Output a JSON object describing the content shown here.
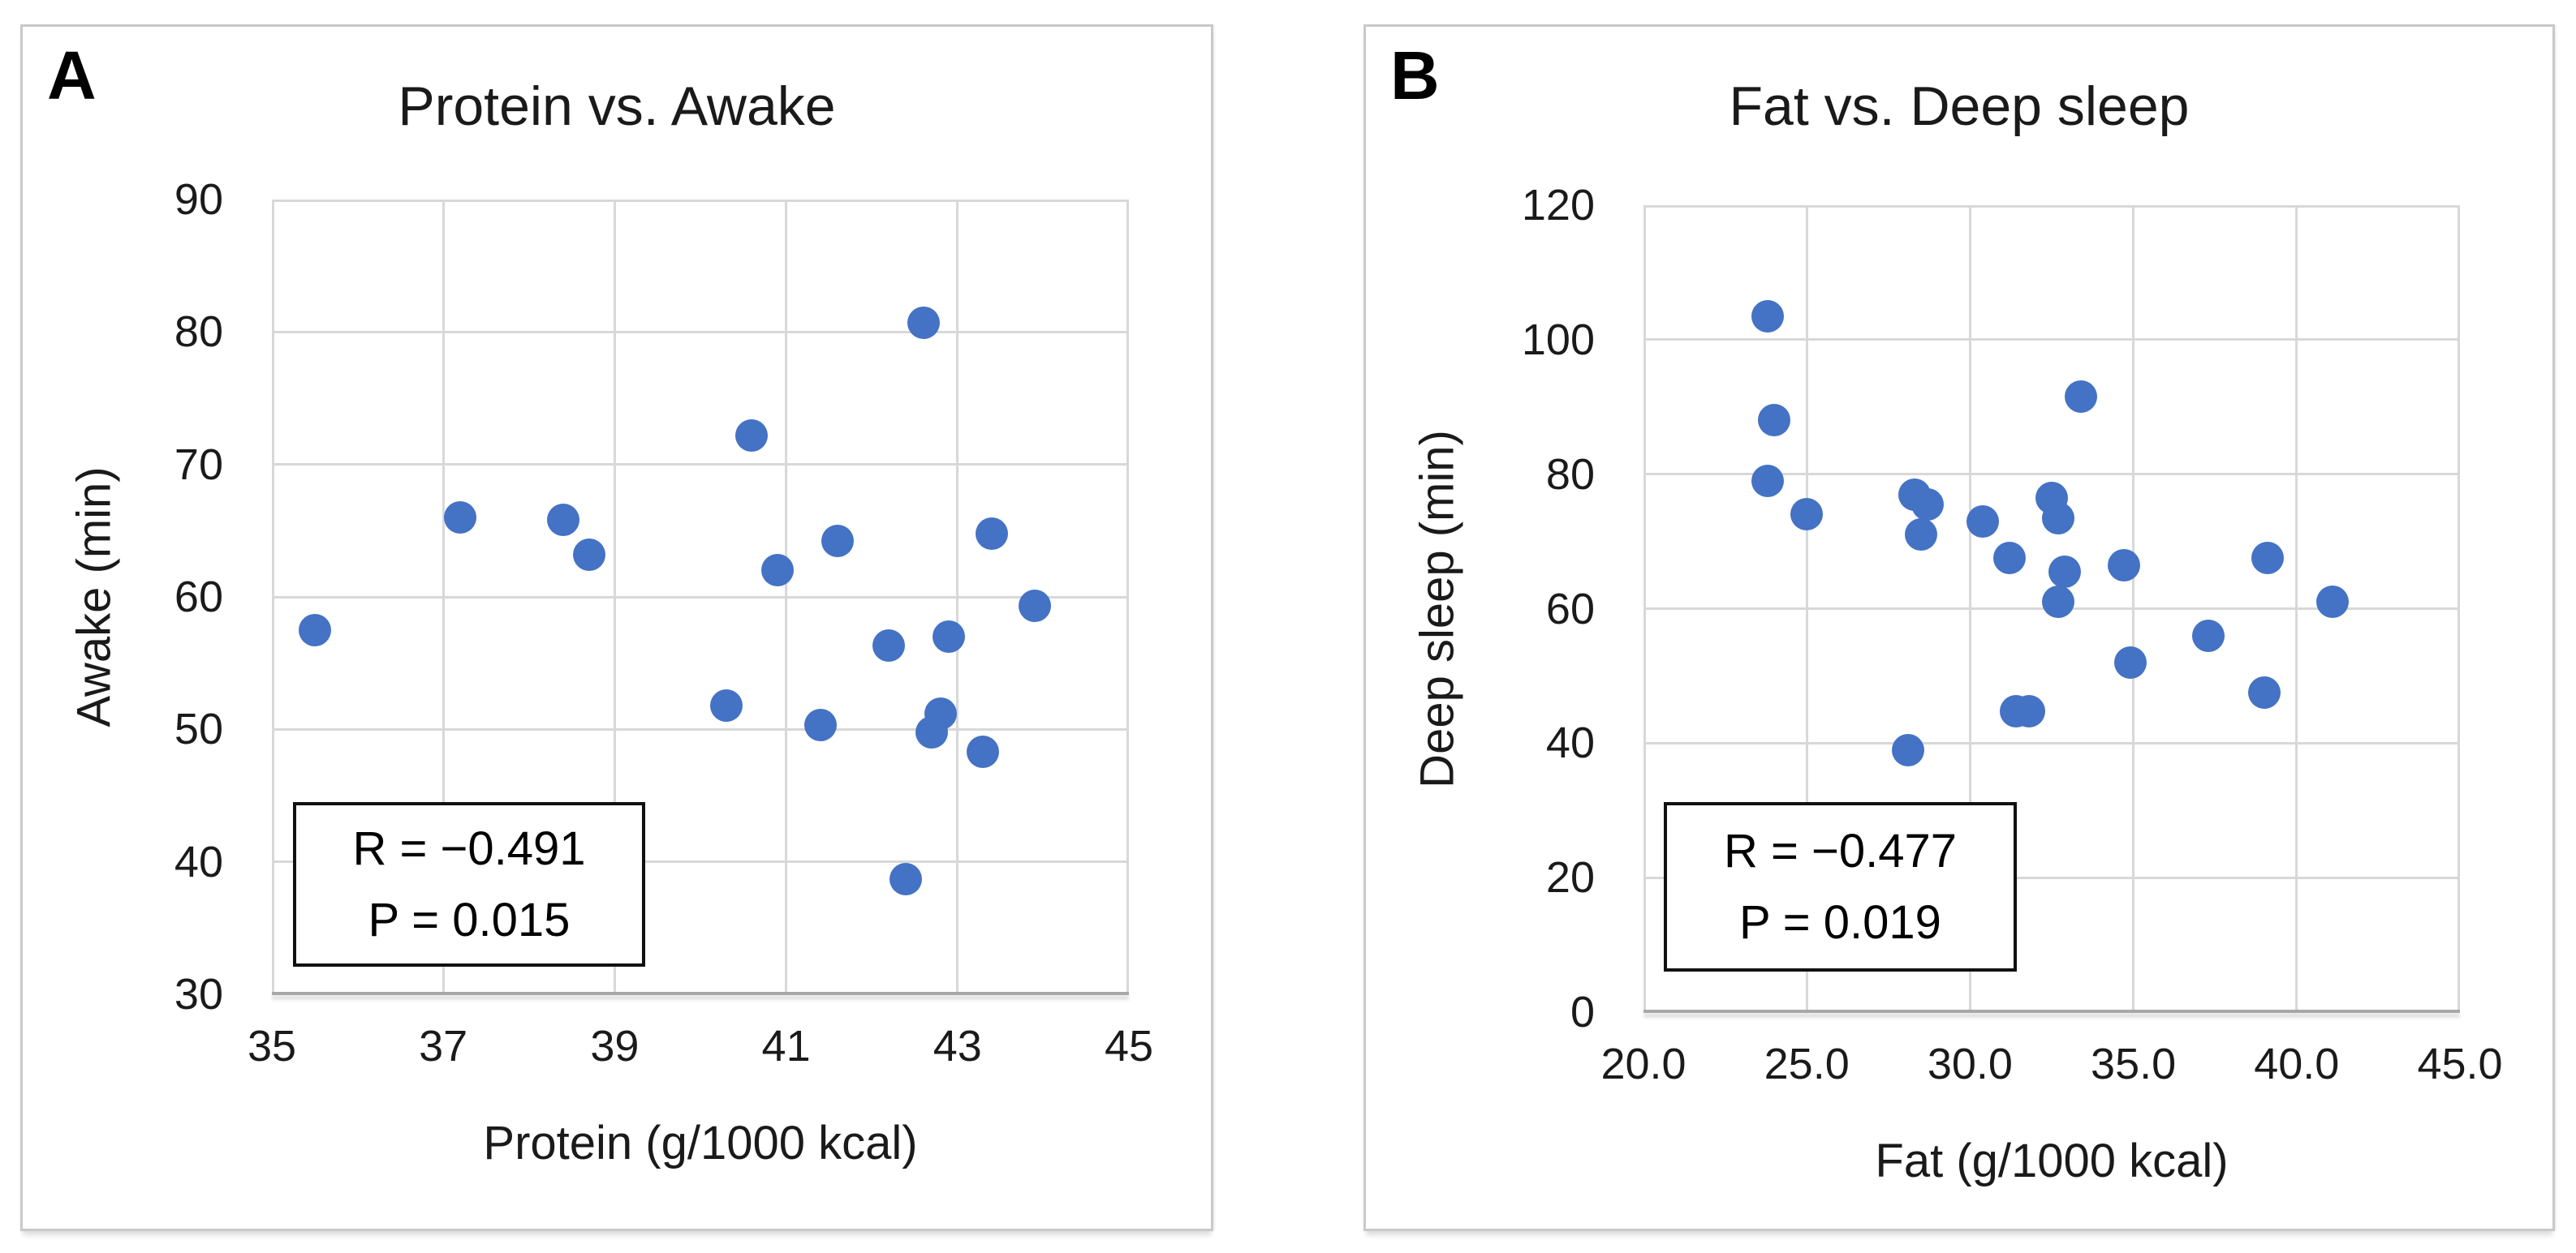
{
  "colors": {
    "marker": "#4472c4",
    "gridline": "#d8d8d8",
    "axis_line": "#a8a8a8",
    "card_border": "#c9c9c9",
    "annotation_border": "#111111",
    "text": "#1a1a1a",
    "background": "#ffffff"
  },
  "chart_data": [
    {
      "type": "scatter",
      "panel_label": "A",
      "title": "Protein vs. Awake",
      "xlabel": "Protein (g/1000 kcal)",
      "ylabel": "Awake (min)",
      "xlim": [
        35,
        45
      ],
      "ylim": [
        30,
        90
      ],
      "xticks": [
        35,
        37,
        39,
        41,
        43,
        45
      ],
      "xtick_labels": [
        "35",
        "37",
        "39",
        "41",
        "43",
        "45"
      ],
      "yticks": [
        30,
        40,
        50,
        60,
        70,
        80,
        90
      ],
      "ytick_labels": [
        "30",
        "40",
        "50",
        "60",
        "70",
        "80",
        "90"
      ],
      "grid": true,
      "legend": false,
      "annotation": {
        "lines": [
          "R = −0.491",
          "P = 0.015"
        ]
      },
      "points": [
        [
          35.5,
          57.5
        ],
        [
          37.2,
          66.0
        ],
        [
          38.4,
          65.8
        ],
        [
          38.7,
          63.2
        ],
        [
          40.3,
          51.8
        ],
        [
          40.6,
          72.2
        ],
        [
          40.9,
          62.0
        ],
        [
          41.4,
          50.3
        ],
        [
          41.6,
          64.2
        ],
        [
          42.2,
          56.3
        ],
        [
          42.4,
          38.7
        ],
        [
          42.6,
          80.7
        ],
        [
          42.7,
          49.8
        ],
        [
          42.8,
          51.2
        ],
        [
          42.9,
          57.0
        ],
        [
          43.3,
          48.3
        ],
        [
          43.4,
          64.8
        ],
        [
          43.9,
          59.3
        ]
      ]
    },
    {
      "type": "scatter",
      "panel_label": "B",
      "title": "Fat vs. Deep sleep",
      "xlabel": "Fat (g/1000 kcal)",
      "ylabel": "Deep sleep (min)",
      "xlim": [
        20,
        45
      ],
      "ylim": [
        0,
        120
      ],
      "xticks": [
        20,
        25,
        30,
        35,
        40,
        45
      ],
      "xtick_labels": [
        "20.0",
        "25.0",
        "30.0",
        "35.0",
        "40.0",
        "45.0"
      ],
      "yticks": [
        0,
        20,
        40,
        60,
        80,
        100,
        120
      ],
      "ytick_labels": [
        "0",
        "20",
        "40",
        "60",
        "80",
        "100",
        "120"
      ],
      "grid": true,
      "legend": false,
      "annotation": {
        "lines": [
          "R = −0.477",
          "P = 0.019"
        ]
      },
      "points": [
        [
          23.8,
          103.5
        ],
        [
          24.0,
          88.0
        ],
        [
          23.8,
          79.0
        ],
        [
          25.0,
          74.0
        ],
        [
          28.1,
          39.0
        ],
        [
          28.3,
          77.0
        ],
        [
          28.5,
          71.0
        ],
        [
          28.7,
          75.5
        ],
        [
          30.4,
          73.0
        ],
        [
          31.2,
          67.5
        ],
        [
          31.4,
          44.8
        ],
        [
          31.8,
          44.8
        ],
        [
          32.5,
          76.5
        ],
        [
          32.7,
          73.5
        ],
        [
          32.7,
          61.0
        ],
        [
          32.9,
          65.5
        ],
        [
          33.4,
          91.5
        ],
        [
          34.7,
          66.5
        ],
        [
          34.9,
          52.0
        ],
        [
          37.3,
          56.0
        ],
        [
          39.0,
          47.5
        ],
        [
          39.1,
          67.5
        ],
        [
          41.1,
          61.0
        ]
      ]
    }
  ]
}
